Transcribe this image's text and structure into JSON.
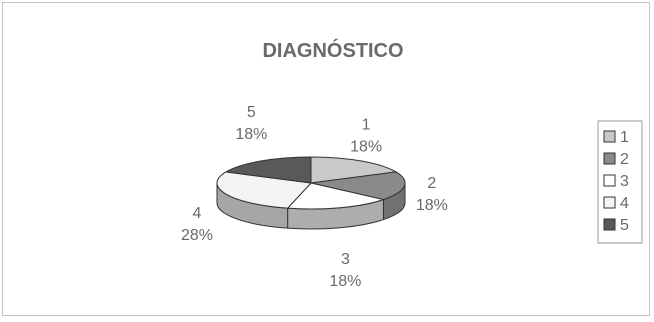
{
  "chart_data": {
    "type": "pie",
    "title": "DIAGNÓSTICO",
    "three_d": true,
    "legend_position": "right",
    "categories": [
      "1",
      "2",
      "3",
      "4",
      "5"
    ],
    "values": [
      18,
      18,
      18,
      28,
      18
    ],
    "value_labels": [
      "18%",
      "18%",
      "18%",
      "28%",
      "18%"
    ],
    "colors": [
      "#c9c9c9",
      "#8a8a8a",
      "#ffffff",
      "#f4f4f4",
      "#595959"
    ],
    "legend": [
      "1",
      "2",
      "3",
      "4",
      "5"
    ]
  }
}
